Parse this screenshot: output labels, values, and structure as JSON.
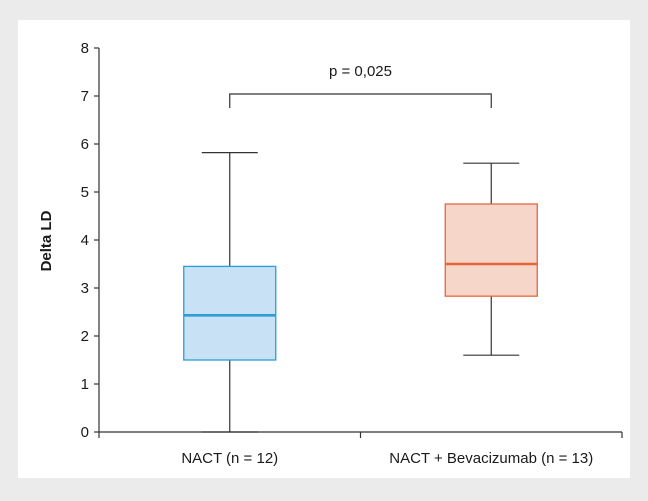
{
  "chart_data": {
    "type": "box",
    "title": "",
    "annotation": "p = 0,025",
    "xlabel": "",
    "ylabel": "Delta LD",
    "ylim": [
      0,
      8
    ],
    "yticks": [
      0,
      1,
      2,
      3,
      4,
      5,
      6,
      7,
      8
    ],
    "grid": false,
    "categories": [
      "NACT (n = 12)",
      "NACT + Bevacizumab (n = 13)"
    ],
    "boxes": [
      {
        "category": "NACT (n = 12)",
        "min": 0.0,
        "q1": 1.5,
        "median": 2.43,
        "q3": 3.45,
        "max": 5.82,
        "fill": "#c9e1f4",
        "stroke": "#2a9ed8"
      },
      {
        "category": "NACT + Bevacizumab (n = 13)",
        "min": 1.6,
        "q1": 2.83,
        "median": 3.5,
        "q3": 4.75,
        "max": 5.6,
        "fill": "#f6d6c8",
        "stroke": "#e2663d"
      }
    ]
  },
  "colors": {
    "background": "#ebebeb",
    "plot_background": "#ffffff",
    "axis": "#333333",
    "bracket": "#333333"
  }
}
